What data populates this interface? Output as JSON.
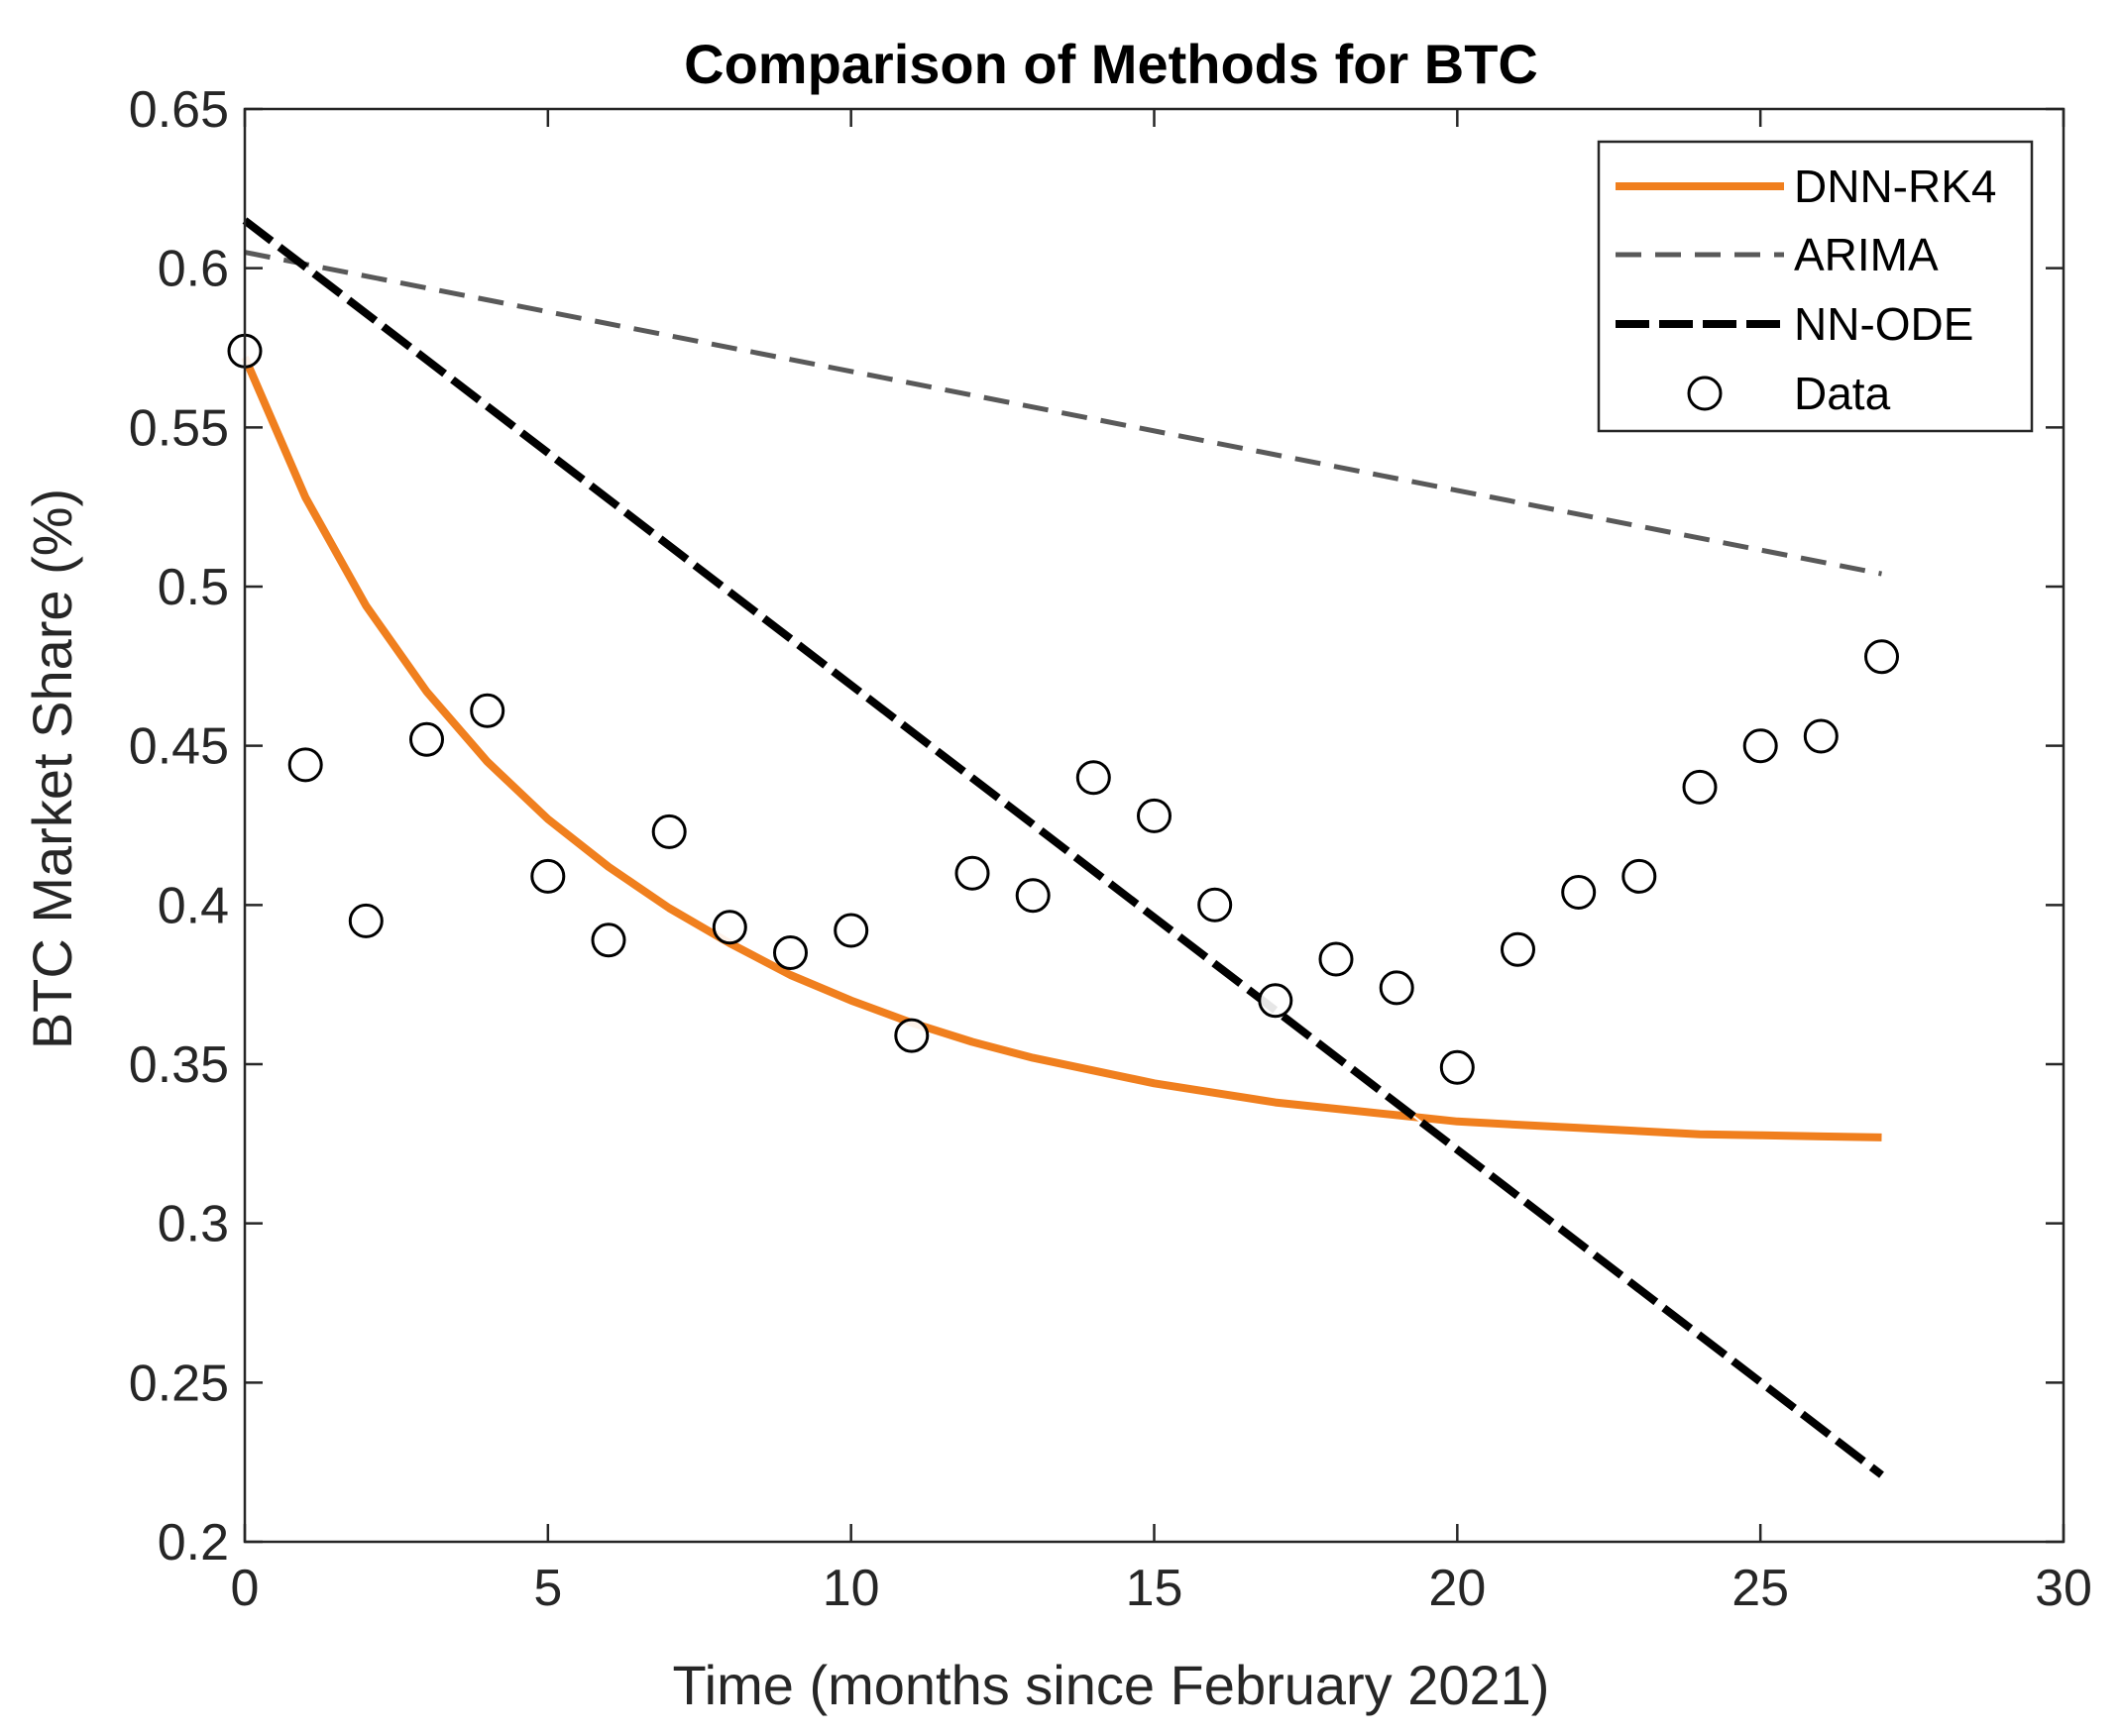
{
  "chart_data": {
    "type": "line",
    "title": "Comparison of Methods for BTC",
    "xlabel": "Time (months since February 2021)",
    "ylabel": "BTC Market Share (%)",
    "xlim": [
      0,
      30
    ],
    "ylim": [
      0.2,
      0.65
    ],
    "xticks": [
      0,
      5,
      10,
      15,
      20,
      25,
      30
    ],
    "xtick_labels": [
      "0",
      "5",
      "10",
      "15",
      "20",
      "25",
      "30"
    ],
    "yticks": [
      0.2,
      0.25,
      0.3,
      0.35,
      0.4,
      0.45,
      0.5,
      0.55,
      0.6,
      0.65
    ],
    "ytick_labels": [
      "0.2",
      "0.25",
      "0.3",
      "0.35",
      "0.4",
      "0.45",
      "0.5",
      "0.55",
      "0.6",
      "0.65"
    ],
    "grid": false,
    "legend_position": "top-right",
    "series": [
      {
        "name": "DNN-RK4",
        "style": "solid",
        "color": "#F07F1E",
        "x": [
          0,
          1,
          2,
          3,
          4,
          5,
          6,
          7,
          8,
          9,
          10,
          11,
          12,
          13,
          14,
          15,
          16,
          17,
          18,
          19,
          20,
          21,
          22,
          23,
          24,
          25,
          26,
          27
        ],
        "y": [
          0.572,
          0.528,
          0.494,
          0.467,
          0.445,
          0.427,
          0.412,
          0.399,
          0.388,
          0.378,
          0.37,
          0.363,
          0.357,
          0.352,
          0.348,
          0.344,
          0.341,
          0.338,
          0.336,
          0.334,
          0.332,
          0.331,
          0.33,
          0.329,
          0.328,
          0.3277,
          0.3273,
          0.327
        ]
      },
      {
        "name": "ARIMA",
        "style": "dashed",
        "color": "#595959",
        "x": [
          0,
          27
        ],
        "y": [
          0.605,
          0.504
        ]
      },
      {
        "name": "NN-ODE",
        "style": "dashed",
        "color": "#000000",
        "x": [
          0,
          27
        ],
        "y": [
          0.615,
          0.221
        ]
      },
      {
        "name": "Data",
        "style": "markers",
        "color": "#000000",
        "x": [
          0,
          1,
          2,
          3,
          4,
          5,
          6,
          7,
          8,
          9,
          10,
          11,
          12,
          13,
          14,
          15,
          16,
          17,
          18,
          19,
          20,
          21,
          22,
          23,
          24,
          25,
          26,
          27
        ],
        "y": [
          0.574,
          0.444,
          0.395,
          0.452,
          0.461,
          0.409,
          0.389,
          0.423,
          0.393,
          0.385,
          0.392,
          0.359,
          0.41,
          0.403,
          0.44,
          0.428,
          0.4,
          0.37,
          0.383,
          0.374,
          0.349,
          0.386,
          0.404,
          0.409,
          0.437,
          0.45,
          0.453,
          0.478
        ]
      }
    ]
  }
}
